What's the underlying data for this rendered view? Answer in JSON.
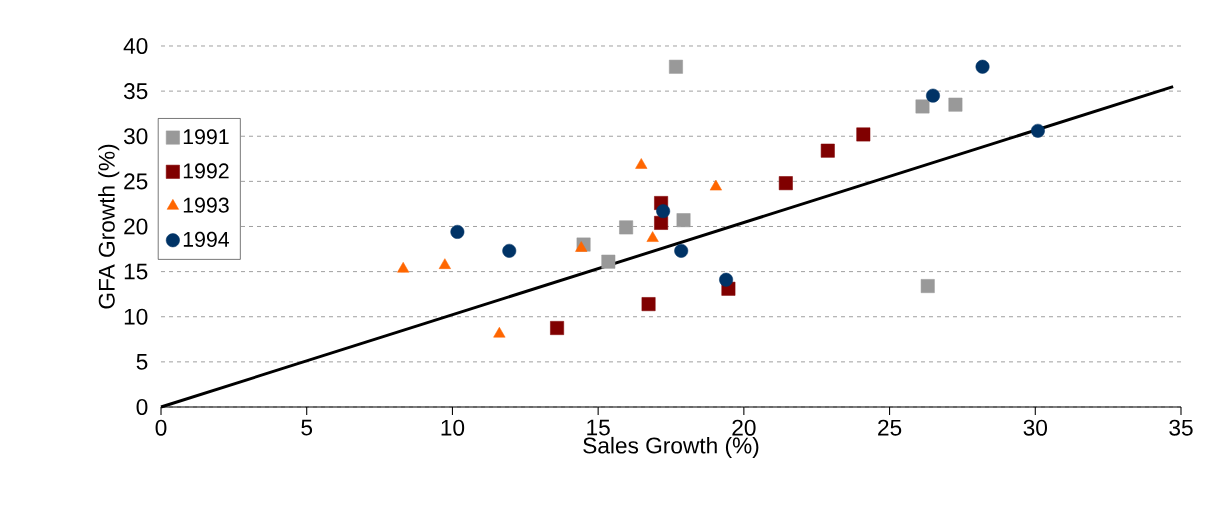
{
  "chart_data": {
    "type": "scatter",
    "xlabel": "Sales Growth (%)",
    "ylabel": "GFA Growth (%)",
    "xlim": [
      0,
      35
    ],
    "ylim": [
      0,
      40
    ],
    "xticks": [
      0,
      5,
      10,
      15,
      20,
      25,
      30,
      35
    ],
    "yticks": [
      0,
      5,
      10,
      15,
      20,
      25,
      30,
      35,
      40
    ],
    "grid": "y",
    "legend": "left",
    "series": [
      {
        "name": "1991",
        "color": "#999999",
        "marker": "square",
        "x": [
          14.5,
          15.35,
          15.96,
          17.67,
          17.93,
          26.13,
          26.31,
          27.26
        ],
        "values": [
          18.0,
          16.1,
          19.9,
          37.7,
          20.7,
          33.3,
          13.4,
          33.5
        ]
      },
      {
        "name": "1992",
        "color": "#800000",
        "marker": "square",
        "x": [
          13.59,
          16.73,
          17.16,
          17.16,
          19.47,
          21.44,
          22.88,
          24.1
        ],
        "values": [
          8.75,
          11.4,
          22.6,
          20.4,
          13.1,
          24.8,
          28.4,
          30.2
        ]
      },
      {
        "name": "1993",
        "color": "#ff6600",
        "marker": "triangle",
        "x": [
          8.31,
          9.74,
          11.61,
          14.42,
          16.48,
          16.87,
          19.04
        ],
        "values": [
          15.3,
          15.7,
          8.1,
          17.6,
          26.8,
          18.7,
          24.4
        ]
      },
      {
        "name": "1994",
        "color": "#003366",
        "marker": "circle",
        "x": [
          10.17,
          11.95,
          17.23,
          17.85,
          19.39,
          26.49,
          28.19,
          30.09
        ],
        "values": [
          19.4,
          17.3,
          21.7,
          17.3,
          14.1,
          34.5,
          37.7,
          30.6
        ]
      },
      {
        "type": "line",
        "color": "#000000",
        "marker": "none",
        "x": [
          0,
          34.73
        ],
        "values": [
          0,
          35.5
        ]
      }
    ]
  }
}
